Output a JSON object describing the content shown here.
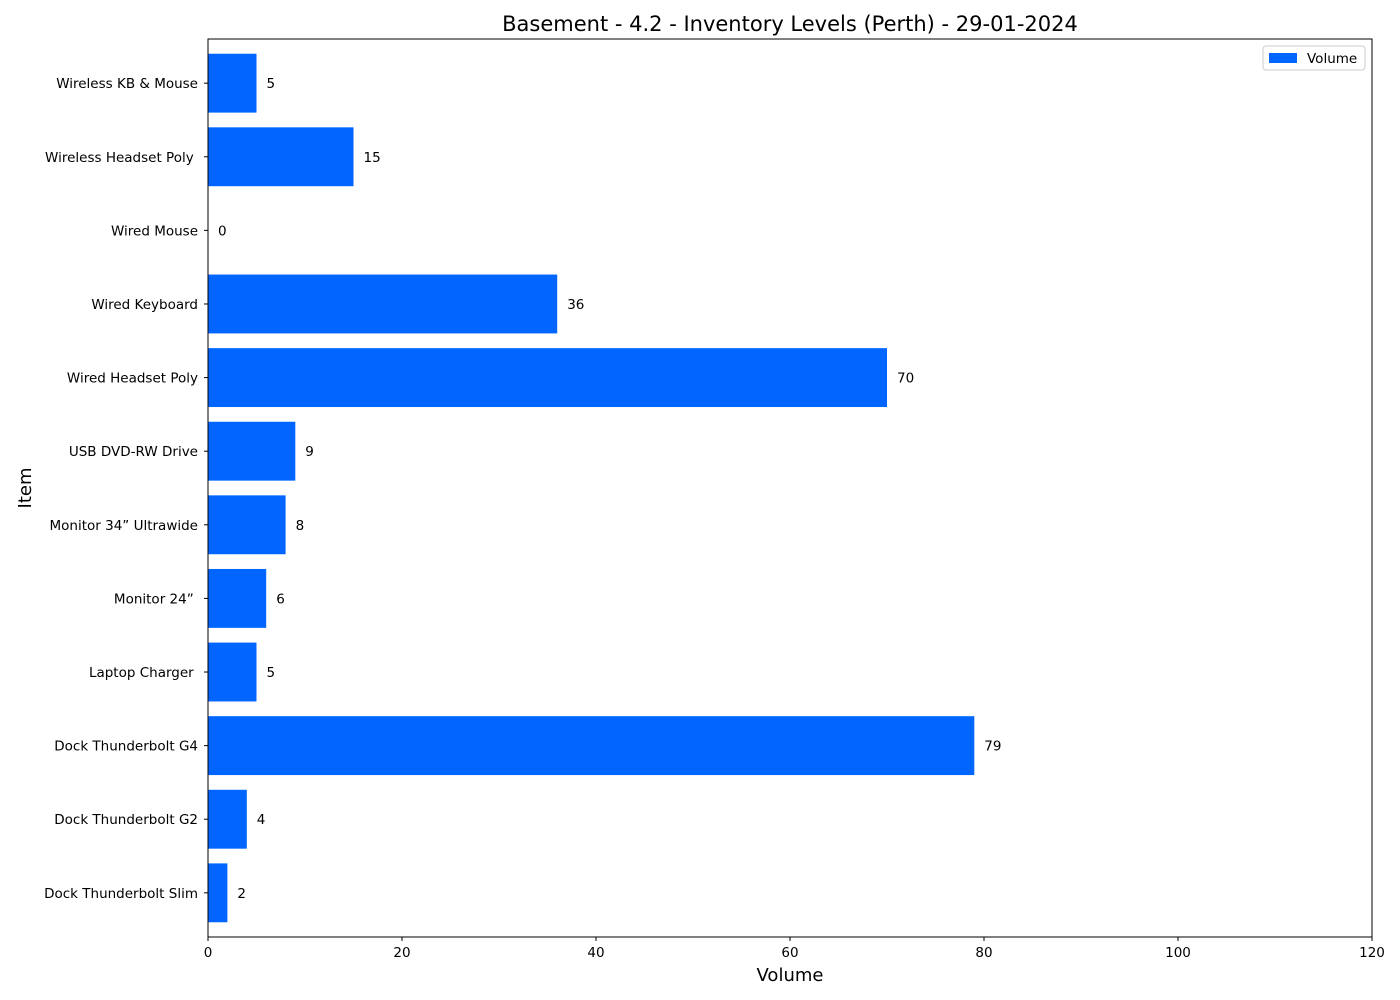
{
  "chart_data": {
    "type": "bar",
    "orientation": "horizontal",
    "title": "Basement - 4.2 - Inventory Levels (Perth) - 29-01-2024",
    "xlabel": "Volume",
    "ylabel": "Item",
    "xlim": [
      0,
      120
    ],
    "xticks": [
      0,
      20,
      40,
      60,
      80,
      100,
      120
    ],
    "categories": [
      "Dock Thunderbolt Slim",
      "Dock Thunderbolt G2",
      "Dock Thunderbolt G4",
      "Laptop Charger ",
      "Monitor 24” ",
      "Monitor 34” Ultrawide",
      "USB DVD-RW Drive",
      "Wired Headset Poly",
      "Wired Keyboard",
      "Wired Mouse",
      "Wireless Headset Poly ",
      "Wireless KB & Mouse"
    ],
    "series": [
      {
        "name": "Volume",
        "color": "#0066ff",
        "values": [
          2,
          4,
          79,
          5,
          6,
          8,
          9,
          70,
          36,
          0,
          15,
          5
        ]
      }
    ],
    "grid": false,
    "legend_position": "top-right"
  }
}
